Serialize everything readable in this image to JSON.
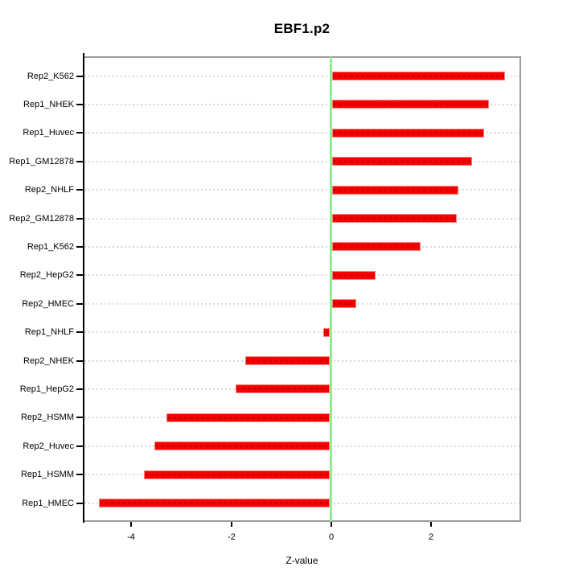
{
  "chart_data": {
    "type": "bar",
    "orientation": "horizontal",
    "title": "EBF1.p2",
    "xlabel": "Z-value",
    "ylabel": "",
    "categories": [
      "Rep2_K562",
      "Rep1_NHEK",
      "Rep1_Huvec",
      "Rep1_GM12878",
      "Rep2_NHLF",
      "Rep2_GM12878",
      "Rep1_K562",
      "Rep2_HepG2",
      "Rep2_HMEC",
      "Rep1_NHLF",
      "Rep2_NHEK",
      "Rep1_HepG2",
      "Rep2_HSMM",
      "Rep2_Huvec",
      "Rep1_HSMM",
      "Rep1_HMEC"
    ],
    "values": [
      3.47,
      3.15,
      3.05,
      2.81,
      2.54,
      2.51,
      1.78,
      0.88,
      0.5,
      -0.16,
      -1.72,
      -1.91,
      -3.3,
      -3.53,
      -3.74,
      -4.64
    ],
    "x_ticks": [
      -4,
      -2,
      0,
      2
    ],
    "xlim": [
      -4.98,
      3.81
    ],
    "grid": true,
    "zero_line": 0,
    "legend": "none",
    "colors": {
      "bar": "#f80000",
      "bar_dash": "#d40000",
      "bar_edge": "#ff8080",
      "zero_line": "#90ee90",
      "grid": "#d9d9d9",
      "box": "#9c9c9c",
      "axis": "#000000",
      "text": "#000000"
    }
  }
}
